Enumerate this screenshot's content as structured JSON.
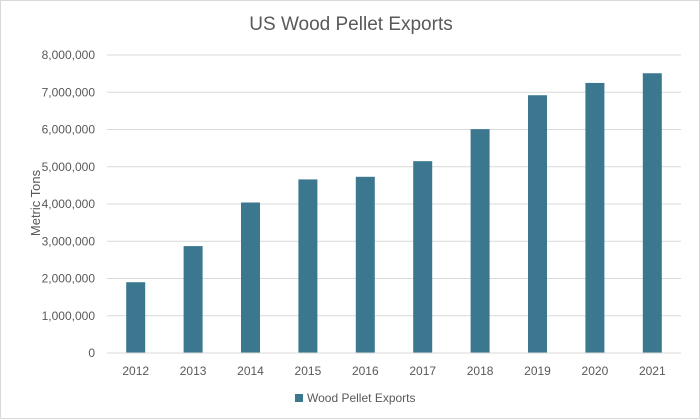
{
  "chart_data": {
    "type": "bar",
    "title": "US Wood Pellet Exports",
    "xlabel": "",
    "ylabel": "Metric Tons",
    "categories": [
      "2012",
      "2013",
      "2014",
      "2015",
      "2016",
      "2017",
      "2018",
      "2019",
      "2020",
      "2021"
    ],
    "series": [
      {
        "name": "Wood Pellet Exports",
        "values": [
          1900000,
          2870000,
          4040000,
          4660000,
          4730000,
          5150000,
          6010000,
          6920000,
          7250000,
          7510000
        ],
        "color": "#3b7890"
      }
    ],
    "ylim": [
      0,
      8000000
    ],
    "yticks": [
      "0",
      "1,000,000",
      "2,000,000",
      "3,000,000",
      "4,000,000",
      "5,000,000",
      "6,000,000",
      "7,000,000",
      "8,000,000"
    ],
    "ytick_values": [
      0,
      1000000,
      2000000,
      3000000,
      4000000,
      5000000,
      6000000,
      7000000,
      8000000
    ],
    "grid": true,
    "legend_position": "bottom"
  }
}
